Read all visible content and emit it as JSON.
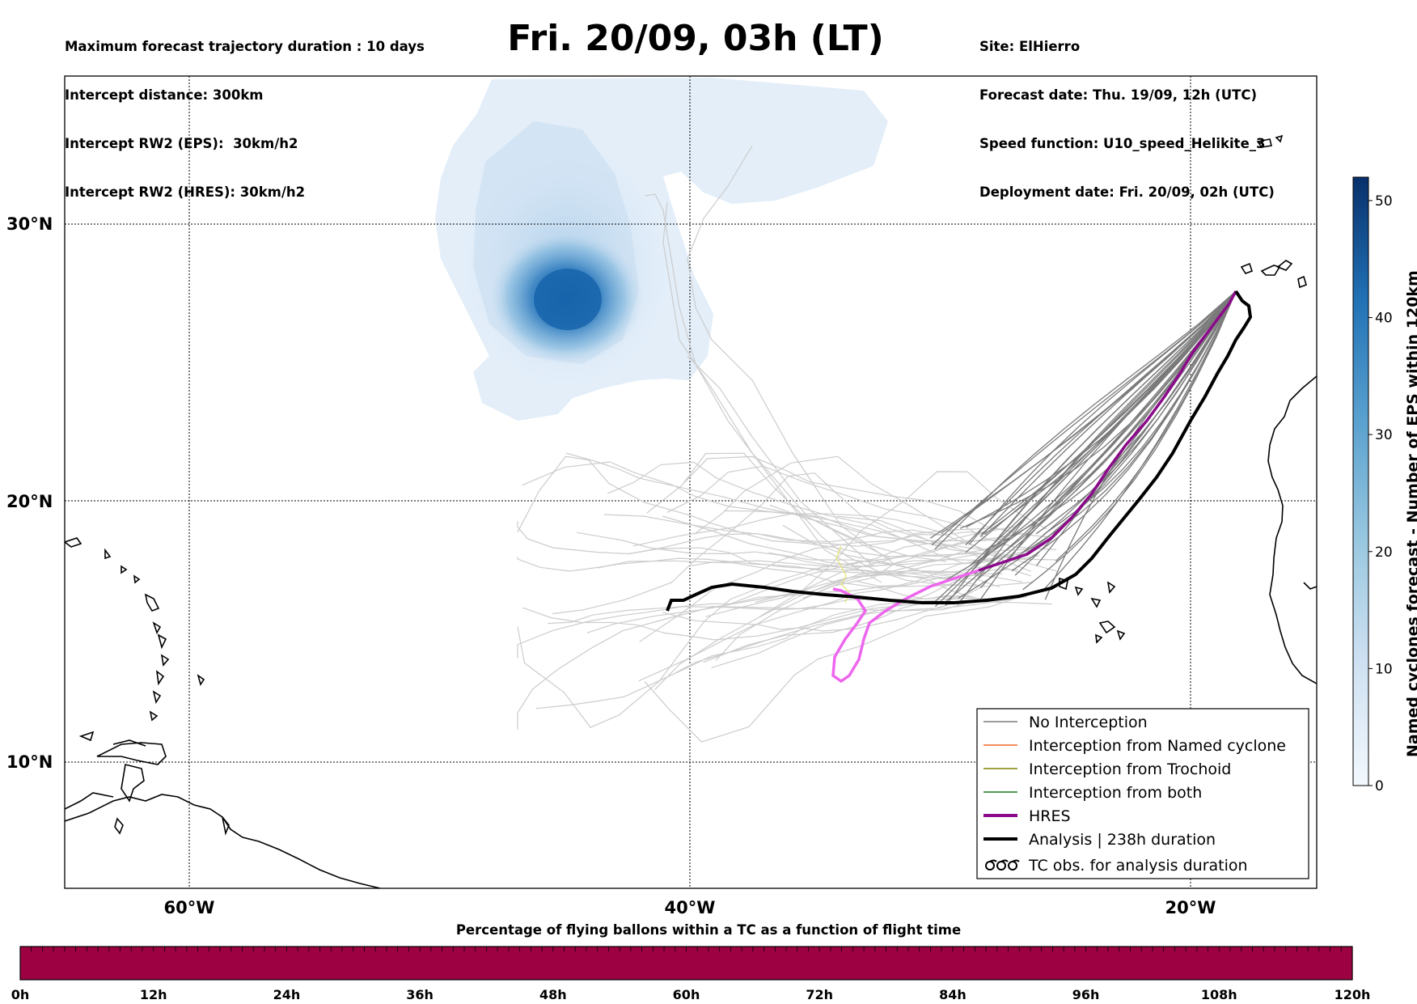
{
  "header_left": [
    "Maximum forecast trajectory duration : 10 days",
    "Intercept distance: 300km",
    "Intercept RW2 (EPS):  30km/h2",
    "Intercept RW2 (HRES): 30km/h2"
  ],
  "title": "Fri. 20/09, 03h (LT)",
  "header_right": [
    "Site: ElHierro",
    "Forecast date: Thu. 19/09, 12h (UTC)",
    "Speed function: U10_speed_Helikite_3",
    "Deployment date: Fri. 20/09, 02h (UTC)"
  ],
  "map": {
    "lon_range": [
      -65,
      -15
    ],
    "lat_range": [
      5,
      34.3
    ],
    "lon_ticks": [
      {
        "value": -60,
        "label": "60°W"
      },
      {
        "value": -40,
        "label": "40°W"
      },
      {
        "value": -20,
        "label": "20°W"
      }
    ],
    "lat_ticks": [
      {
        "value": 30,
        "label": "30°N"
      },
      {
        "value": 20,
        "label": "20°N"
      },
      {
        "value": 10,
        "label": "10°N"
      }
    ],
    "density_peak": {
      "lon": -45,
      "lat": 27.4
    },
    "launch_site": {
      "lon": -17.8,
      "lat": 27.2
    },
    "colors": {
      "density_light": "#e3eef9",
      "density_dark": "#1764ab",
      "no_interception": "#7a7a7a",
      "eps_far": "#cccccc",
      "hres": "#8b0a8b",
      "hres_late": "#ee66ee",
      "analysis": "#000000",
      "named_cyclone": "#ee6a2c",
      "trochoid": "#808000",
      "both": "#1a7a1a"
    }
  },
  "colorbar": {
    "label": "Named cyclones forecast - Number of EPS within 120km",
    "min": 0,
    "max": 52,
    "ticks": [
      "0",
      "10",
      "20",
      "30",
      "40",
      "50"
    ],
    "tick_values": [
      0,
      10,
      20,
      30,
      40,
      50
    ]
  },
  "legend": [
    {
      "label": "No Interception",
      "style": "thin-gray"
    },
    {
      "label": "Interception from Named cyclone",
      "style": "thin-orange"
    },
    {
      "label": "Interception from Trochoid",
      "style": "thin-olive"
    },
    {
      "label": "Interception from both",
      "style": "thin-green"
    },
    {
      "label": "HRES",
      "style": "thick-purple"
    },
    {
      "label": "Analysis | 238h duration",
      "style": "thick-black"
    },
    {
      "label": "TC obs. for analysis duration",
      "style": "tc-symbol"
    }
  ],
  "bottom_bar": {
    "title": "Percentage of flying ballons within a TC as a function of flight time",
    "ticks": [
      "0h",
      "12h",
      "24h",
      "36h",
      "48h",
      "60h",
      "72h",
      "84h",
      "96h",
      "108h",
      "120h"
    ],
    "fill_color": "#9e0142"
  }
}
